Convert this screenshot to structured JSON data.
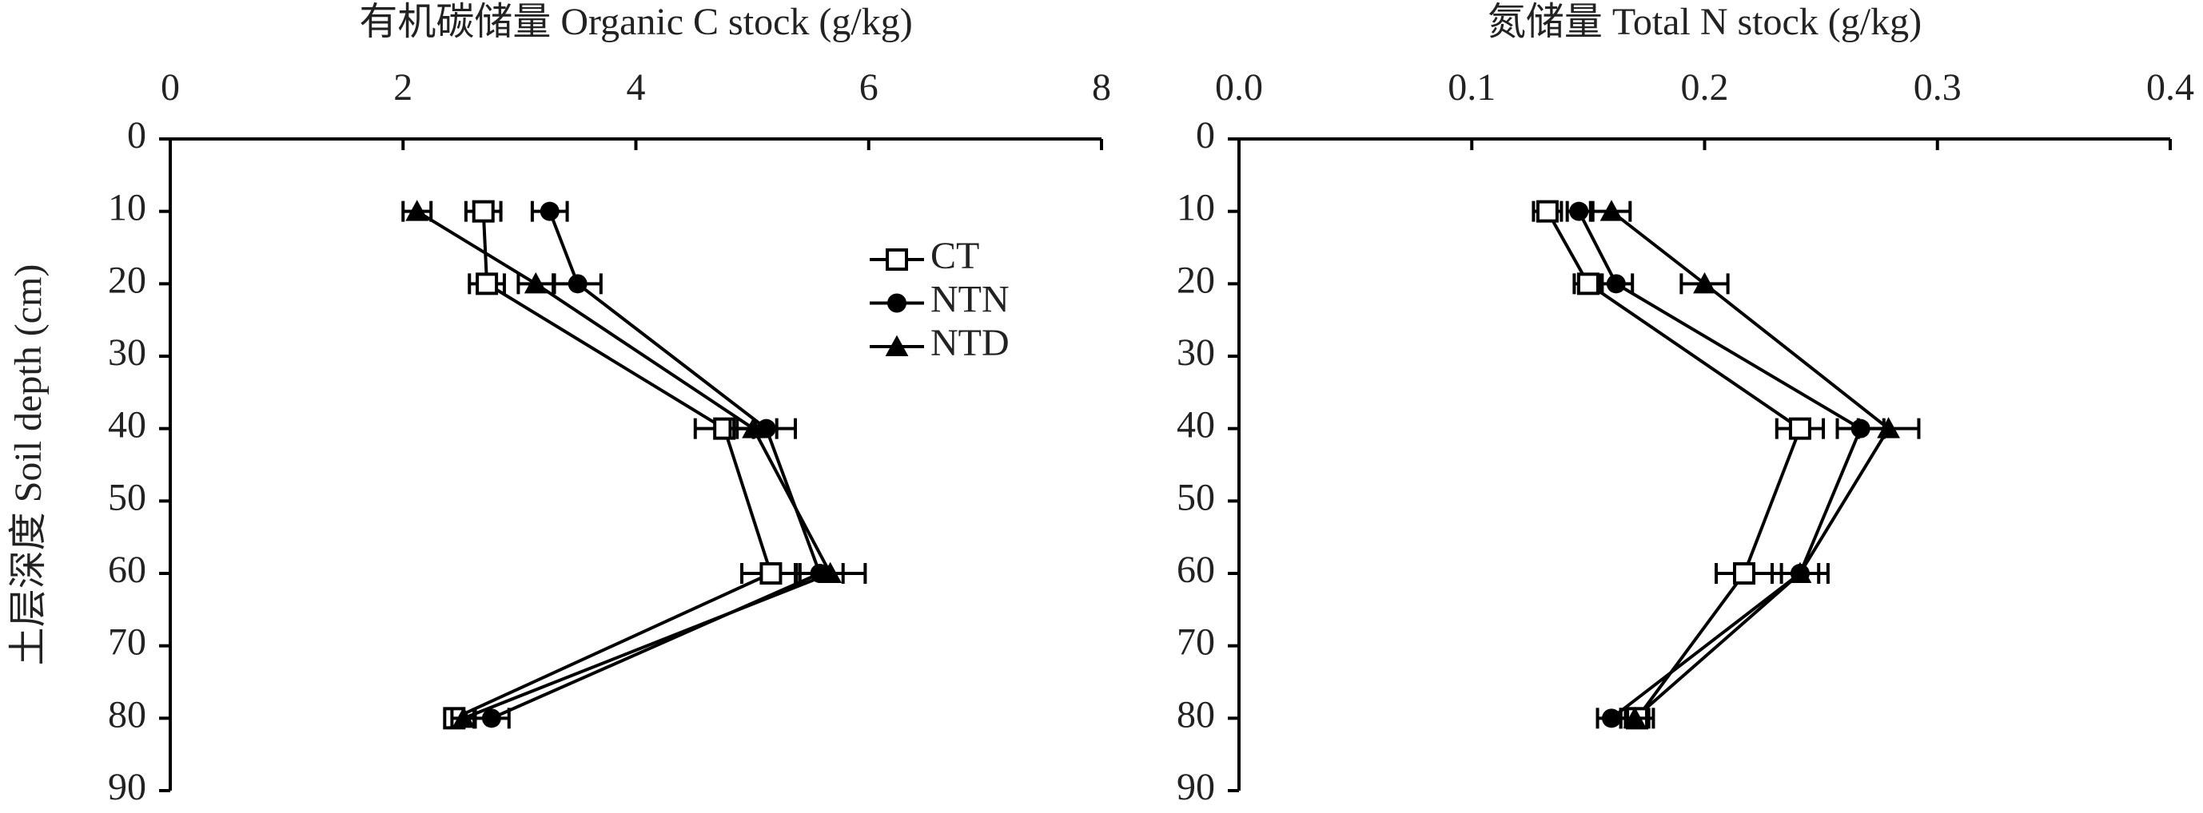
{
  "chart_data": [
    {
      "type": "line",
      "title": "有机碳储量 Organic C stock (g/kg)",
      "ylabel": "土层深度 Soil depth (cm)",
      "y": [
        10,
        20,
        40,
        60,
        80
      ],
      "ylim": [
        0,
        90
      ],
      "yticks": [
        0,
        10,
        20,
        30,
        40,
        50,
        60,
        70,
        80,
        90
      ],
      "y_inverted": true,
      "xlim": [
        0,
        8
      ],
      "xticks": [
        0,
        2,
        4,
        6,
        8
      ],
      "legend": true,
      "series": [
        {
          "name": "CT",
          "color": "#000000",
          "marker": "square-open",
          "values": [
            2.69,
            2.72,
            4.76,
            5.16,
            2.44
          ],
          "errors": [
            0.15,
            0.15,
            0.25,
            0.25,
            0.08
          ]
        },
        {
          "name": "NTN",
          "color": "#000000",
          "marker": "circle",
          "values": [
            3.26,
            3.5,
            5.12,
            5.58,
            2.76
          ],
          "errors": [
            0.15,
            0.2,
            0.25,
            0.2,
            0.15
          ]
        },
        {
          "name": "NTD",
          "color": "#000000",
          "marker": "triangle",
          "values": [
            2.12,
            3.14,
            5.01,
            5.67,
            2.52
          ],
          "errors": [
            0.12,
            0.15,
            0.2,
            0.3,
            0.1
          ]
        }
      ]
    },
    {
      "type": "line",
      "title": "氮储量 Total N stock (g/kg)",
      "y": [
        10,
        20,
        40,
        60,
        80
      ],
      "ylim": [
        0,
        90
      ],
      "yticks": [
        0,
        10,
        20,
        30,
        40,
        50,
        60,
        70,
        80,
        90
      ],
      "y_inverted": true,
      "xlim": [
        0,
        0.4
      ],
      "xticks": [
        {
          "value": 0,
          "label": "0.0"
        },
        0.1,
        0.2,
        0.3,
        0.4
      ],
      "legend": false,
      "series": [
        {
          "color": "#000000",
          "marker": "square-open",
          "values": [
            0.1325,
            0.15,
            0.241,
            0.217,
            0.171
          ],
          "errors": [
            0.006,
            0.006,
            0.01,
            0.012,
            0.007
          ]
        },
        {
          "color": "#000000",
          "marker": "circle",
          "values": [
            0.146,
            0.162,
            0.267,
            0.241,
            0.16
          ],
          "errors": [
            0.005,
            0.007,
            0.01,
            0.008,
            0.006
          ]
        },
        {
          "color": "#000000",
          "marker": "triangle",
          "values": [
            0.16,
            0.2,
            0.279,
            0.241,
            0.17
          ],
          "errors": [
            0.008,
            0.01,
            0.013,
            0.012,
            0.006
          ]
        }
      ]
    }
  ]
}
